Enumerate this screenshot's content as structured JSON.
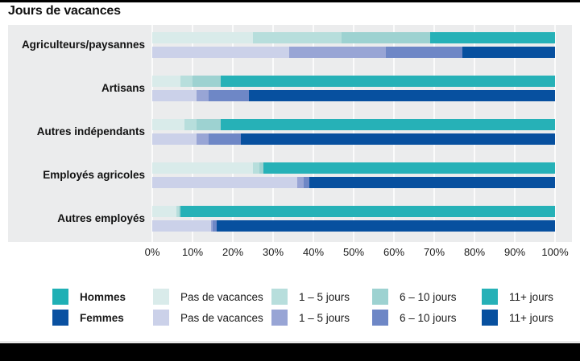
{
  "title": "Jours de vacances",
  "colors": {
    "panel": "#ebeced",
    "gridline": "#fbfbfb",
    "hommes": {
      "legend": "#1fb0b5",
      "pas": "#d9ebea",
      "j1_5": "#b7dedc",
      "j6_10": "#9dd2d1",
      "j11": "#26b1b7"
    },
    "femmes": {
      "legend": "#0a51a1",
      "pas": "#cbd1e9",
      "j1_5": "#98a5d5",
      "j6_10": "#6e87c6",
      "j11": "#07509f"
    }
  },
  "chart_data": {
    "type": "bar",
    "stacked": true,
    "orientation": "horizontal",
    "title": "Jours de vacances",
    "xlim": [
      0,
      100
    ],
    "grid": true,
    "x_ticks": [
      "0%",
      "10%",
      "20%",
      "30%",
      "40%",
      "50%",
      "60%",
      "70%",
      "80%",
      "90%",
      "100%"
    ],
    "categories": [
      "Agriculteurs/paysannes",
      "Artisans",
      "Autres indépendants",
      "Employés agricoles",
      "Autres employés"
    ],
    "segment_labels": [
      "Pas de vacances",
      "1 – 5 jours",
      "6 – 10 jours",
      "11+ jours"
    ],
    "series": [
      {
        "name": "Hommes",
        "values": [
          [
            25,
            22,
            22,
            31
          ],
          [
            7,
            3,
            7,
            83
          ],
          [
            8,
            3,
            6,
            83
          ],
          [
            25,
            1.5,
            1,
            72.5
          ],
          [
            6,
            0.5,
            0.5,
            93
          ]
        ]
      },
      {
        "name": "Femmes",
        "values": [
          [
            34,
            24,
            19,
            23
          ],
          [
            11,
            3,
            10,
            76
          ],
          [
            11,
            3,
            8,
            78
          ],
          [
            36,
            1.5,
            1.5,
            61
          ],
          [
            14.5,
            0.5,
            1,
            84
          ]
        ]
      }
    ]
  },
  "legend": {
    "rows": [
      {
        "series": "Hommes",
        "items": [
          {
            "key": "pas",
            "label": "Pas de vacances"
          },
          {
            "key": "j1_5",
            "label": "1 – 5 jours"
          },
          {
            "key": "j6_10",
            "label": "6 – 10 jours"
          },
          {
            "key": "j11",
            "label": "11+ jours"
          }
        ]
      },
      {
        "series": "Femmes",
        "items": [
          {
            "key": "pas",
            "label": "Pas de vacances"
          },
          {
            "key": "j1_5",
            "label": "1 – 5 jours"
          },
          {
            "key": "j6_10",
            "label": "6 – 10 jours"
          },
          {
            "key": "j11",
            "label": "11+ jours"
          }
        ]
      }
    ]
  }
}
